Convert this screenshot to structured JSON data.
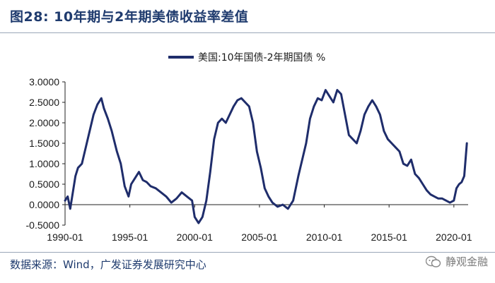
{
  "header": {
    "title": "图28:  10年期与2年期美债收益率差值"
  },
  "footer": {
    "source": "数据来源：Wind，广发证券发展研究中心",
    "watermark": "静观金融"
  },
  "colors": {
    "series": "#1f2d6b",
    "title": "#1f3b6e"
  },
  "chart_data": {
    "type": "line",
    "title": "10年期与2年期美债收益率差值",
    "xlabel": "",
    "ylabel": "",
    "legend": "top-center",
    "grid": false,
    "xlim": [
      1990,
      2021.1
    ],
    "ylim": [
      -0.5,
      3.0
    ],
    "y_ticks": [
      "3.0000",
      "2.5000",
      "2.0000",
      "1.5000",
      "1.0000",
      "0.5000",
      "0.0000",
      "-0.5000"
    ],
    "y_tick_values": [
      3.0,
      2.5,
      2.0,
      1.5,
      1.0,
      0.5,
      0.0,
      -0.5
    ],
    "x_ticks": [
      "1990-01",
      "1995-01",
      "2000-01",
      "2005-01",
      "2010-01",
      "2015-01",
      "2020-01"
    ],
    "x_tick_values": [
      1990,
      1995,
      2000,
      2005,
      2010,
      2015,
      2020
    ],
    "series": [
      {
        "name": "美国:10年国债-2年期国债 %",
        "x": [
          1990.0,
          1990.2,
          1990.4,
          1990.6,
          1990.8,
          1991.0,
          1991.3,
          1991.6,
          1991.9,
          1992.2,
          1992.5,
          1992.8,
          1993.0,
          1993.3,
          1993.6,
          1994.0,
          1994.3,
          1994.6,
          1994.9,
          1995.1,
          1995.4,
          1995.7,
          1996.0,
          1996.3,
          1996.6,
          1997.0,
          1997.4,
          1997.8,
          1998.2,
          1998.6,
          1999.0,
          1999.4,
          1999.8,
          2000.0,
          2000.3,
          2000.6,
          2000.9,
          2001.2,
          2001.5,
          2001.8,
          2002.1,
          2002.4,
          2002.7,
          2003.0,
          2003.3,
          2003.6,
          2003.9,
          2004.2,
          2004.5,
          2004.8,
          2005.1,
          2005.4,
          2005.7,
          2006.0,
          2006.4,
          2006.8,
          2007.2,
          2007.6,
          2008.0,
          2008.3,
          2008.6,
          2008.9,
          2009.2,
          2009.5,
          2009.8,
          2010.1,
          2010.4,
          2010.7,
          2011.0,
          2011.3,
          2011.6,
          2011.9,
          2012.2,
          2012.5,
          2012.8,
          2013.1,
          2013.4,
          2013.7,
          2014.0,
          2014.3,
          2014.6,
          2014.9,
          2015.2,
          2015.5,
          2015.8,
          2016.1,
          2016.4,
          2016.7,
          2017.0,
          2017.3,
          2017.6,
          2017.9,
          2018.2,
          2018.5,
          2018.8,
          2019.1,
          2019.4,
          2019.7,
          2020.0,
          2020.2,
          2020.4,
          2020.6,
          2020.8,
          2021.0
        ],
        "values": [
          0.1,
          0.2,
          -0.1,
          0.3,
          0.7,
          0.9,
          1.0,
          1.4,
          1.8,
          2.2,
          2.45,
          2.6,
          2.35,
          2.1,
          1.8,
          1.3,
          1.0,
          0.45,
          0.2,
          0.5,
          0.65,
          0.8,
          0.6,
          0.55,
          0.45,
          0.4,
          0.3,
          0.2,
          0.05,
          0.15,
          0.3,
          0.2,
          0.1,
          -0.3,
          -0.45,
          -0.3,
          0.1,
          0.8,
          1.6,
          2.0,
          2.1,
          2.0,
          2.2,
          2.4,
          2.55,
          2.6,
          2.5,
          2.4,
          2.0,
          1.3,
          0.9,
          0.4,
          0.2,
          0.05,
          -0.05,
          0.0,
          -0.1,
          0.1,
          0.7,
          1.1,
          1.5,
          2.1,
          2.4,
          2.6,
          2.55,
          2.8,
          2.65,
          2.5,
          2.8,
          2.7,
          2.2,
          1.7,
          1.6,
          1.5,
          1.8,
          2.2,
          2.4,
          2.55,
          2.4,
          2.2,
          1.8,
          1.6,
          1.5,
          1.4,
          1.3,
          1.0,
          0.95,
          1.1,
          0.75,
          0.65,
          0.5,
          0.35,
          0.25,
          0.2,
          0.15,
          0.15,
          0.1,
          0.05,
          0.1,
          0.4,
          0.5,
          0.55,
          0.7,
          1.5
        ]
      }
    ]
  }
}
